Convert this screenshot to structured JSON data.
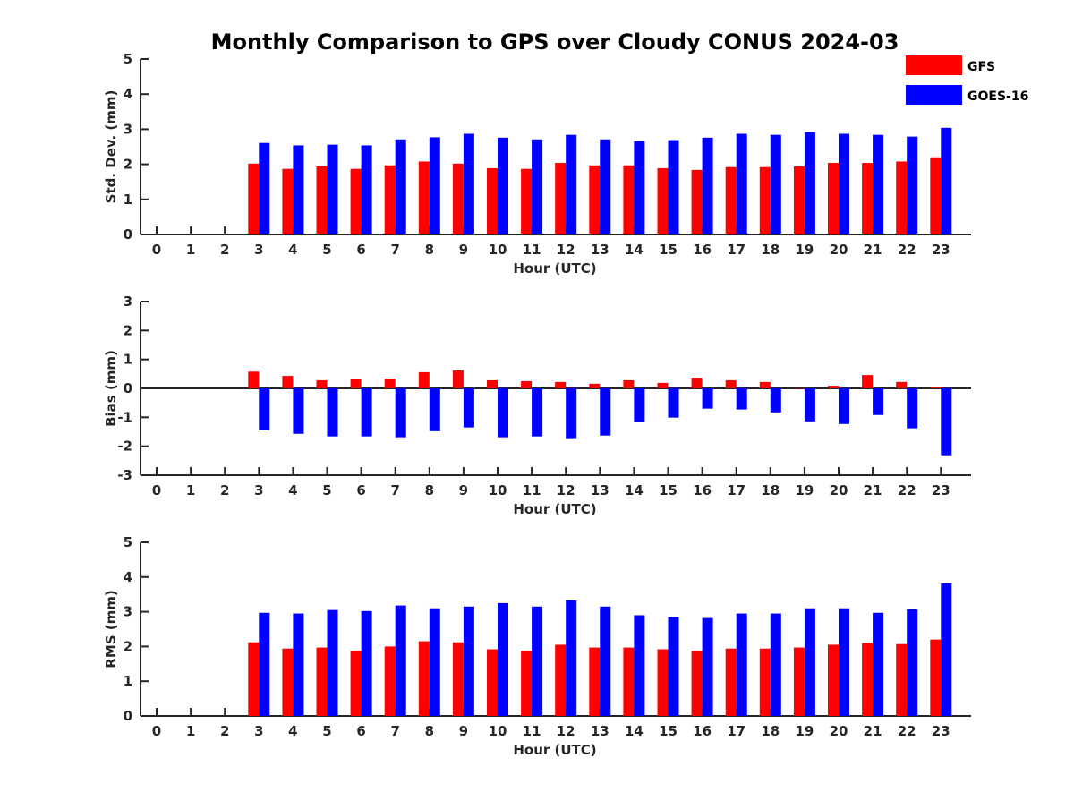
{
  "chart_data": {
    "title": "Monthly Comparison to GPS over Cloudy CONUS 2024-03",
    "legend": {
      "placement": "top-right",
      "entries": [
        {
          "name": "GFS",
          "color": "#ff0000"
        },
        {
          "name": "GOES-16",
          "color": "#0000ff"
        }
      ]
    },
    "panels": [
      {
        "type": "bar",
        "xlabel": "Hour (UTC)",
        "ylabel": "Std. Dev. (mm)",
        "ylim": [
          0,
          5
        ],
        "yticks": [
          "0",
          "1",
          "2",
          "3",
          "4",
          "5"
        ],
        "categories": [
          "0",
          "1",
          "2",
          "3",
          "4",
          "5",
          "6",
          "7",
          "8",
          "9",
          "10",
          "11",
          "12",
          "13",
          "14",
          "15",
          "16",
          "17",
          "18",
          "19",
          "20",
          "21",
          "22",
          "23"
        ],
        "series": [
          {
            "name": "GFS",
            "color": "#ff0000",
            "values": [
              null,
              null,
              null,
              2.02,
              1.87,
              1.94,
              1.87,
              1.97,
              2.08,
              2.02,
              1.89,
              1.87,
              2.04,
              1.97,
              1.97,
              1.89,
              1.84,
              1.92,
              1.92,
              1.94,
              2.04,
              2.04,
              2.08,
              2.2
            ]
          },
          {
            "name": "GOES-16",
            "color": "#0000ff",
            "values": [
              null,
              null,
              null,
              2.61,
              2.54,
              2.56,
              2.54,
              2.71,
              2.77,
              2.87,
              2.76,
              2.71,
              2.84,
              2.71,
              2.66,
              2.69,
              2.76,
              2.87,
              2.84,
              2.92,
              2.87,
              2.84,
              2.79,
              3.04
            ]
          }
        ]
      },
      {
        "type": "bar",
        "xlabel": "Hour (UTC)",
        "ylabel": "Bias (mm)",
        "ylim": [
          -3,
          3
        ],
        "yticks": [
          "-3",
          "-2",
          "-1",
          "0",
          "1",
          "2",
          "3"
        ],
        "categories": [
          "0",
          "1",
          "2",
          "3",
          "4",
          "5",
          "6",
          "7",
          "8",
          "9",
          "10",
          "11",
          "12",
          "13",
          "14",
          "15",
          "16",
          "17",
          "18",
          "19",
          "20",
          "21",
          "22",
          "23"
        ],
        "series": [
          {
            "name": "GFS",
            "color": "#ff0000",
            "values": [
              null,
              null,
              null,
              0.58,
              0.43,
              0.28,
              0.31,
              0.34,
              0.56,
              0.62,
              0.28,
              0.25,
              0.22,
              0.16,
              0.28,
              0.19,
              0.37,
              0.28,
              0.22,
              0.0,
              0.09,
              0.46,
              0.22,
              0.03
            ]
          },
          {
            "name": "GOES-16",
            "color": "#0000ff",
            "values": [
              null,
              null,
              null,
              -1.45,
              -1.57,
              -1.66,
              -1.66,
              -1.69,
              -1.48,
              -1.35,
              -1.69,
              -1.66,
              -1.72,
              -1.63,
              -1.17,
              -1.01,
              -0.7,
              -0.73,
              -0.83,
              -1.14,
              -1.23,
              -0.92,
              -1.38,
              -2.31
            ]
          }
        ]
      },
      {
        "type": "bar",
        "xlabel": "Hour (UTC)",
        "ylabel": "RMS (mm)",
        "ylim": [
          0,
          5
        ],
        "yticks": [
          "0",
          "1",
          "2",
          "3",
          "4",
          "5"
        ],
        "categories": [
          "0",
          "1",
          "2",
          "3",
          "4",
          "5",
          "6",
          "7",
          "8",
          "9",
          "10",
          "11",
          "12",
          "13",
          "14",
          "15",
          "16",
          "17",
          "18",
          "19",
          "20",
          "21",
          "22",
          "23"
        ],
        "series": [
          {
            "name": "GFS",
            "color": "#ff0000",
            "values": [
              null,
              null,
              null,
              2.12,
              1.94,
              1.97,
              1.87,
              2.0,
              2.15,
              2.12,
              1.92,
              1.87,
              2.05,
              1.97,
              1.97,
              1.92,
              1.87,
              1.94,
              1.94,
              1.97,
              2.05,
              2.1,
              2.07,
              2.2
            ]
          },
          {
            "name": "GOES-16",
            "color": "#0000ff",
            "values": [
              null,
              null,
              null,
              2.97,
              2.95,
              3.05,
              3.02,
              3.18,
              3.1,
              3.15,
              3.25,
              3.15,
              3.33,
              3.15,
              2.9,
              2.85,
              2.82,
              2.95,
              2.95,
              3.1,
              3.1,
              2.97,
              3.08,
              3.82
            ]
          }
        ]
      }
    ]
  }
}
